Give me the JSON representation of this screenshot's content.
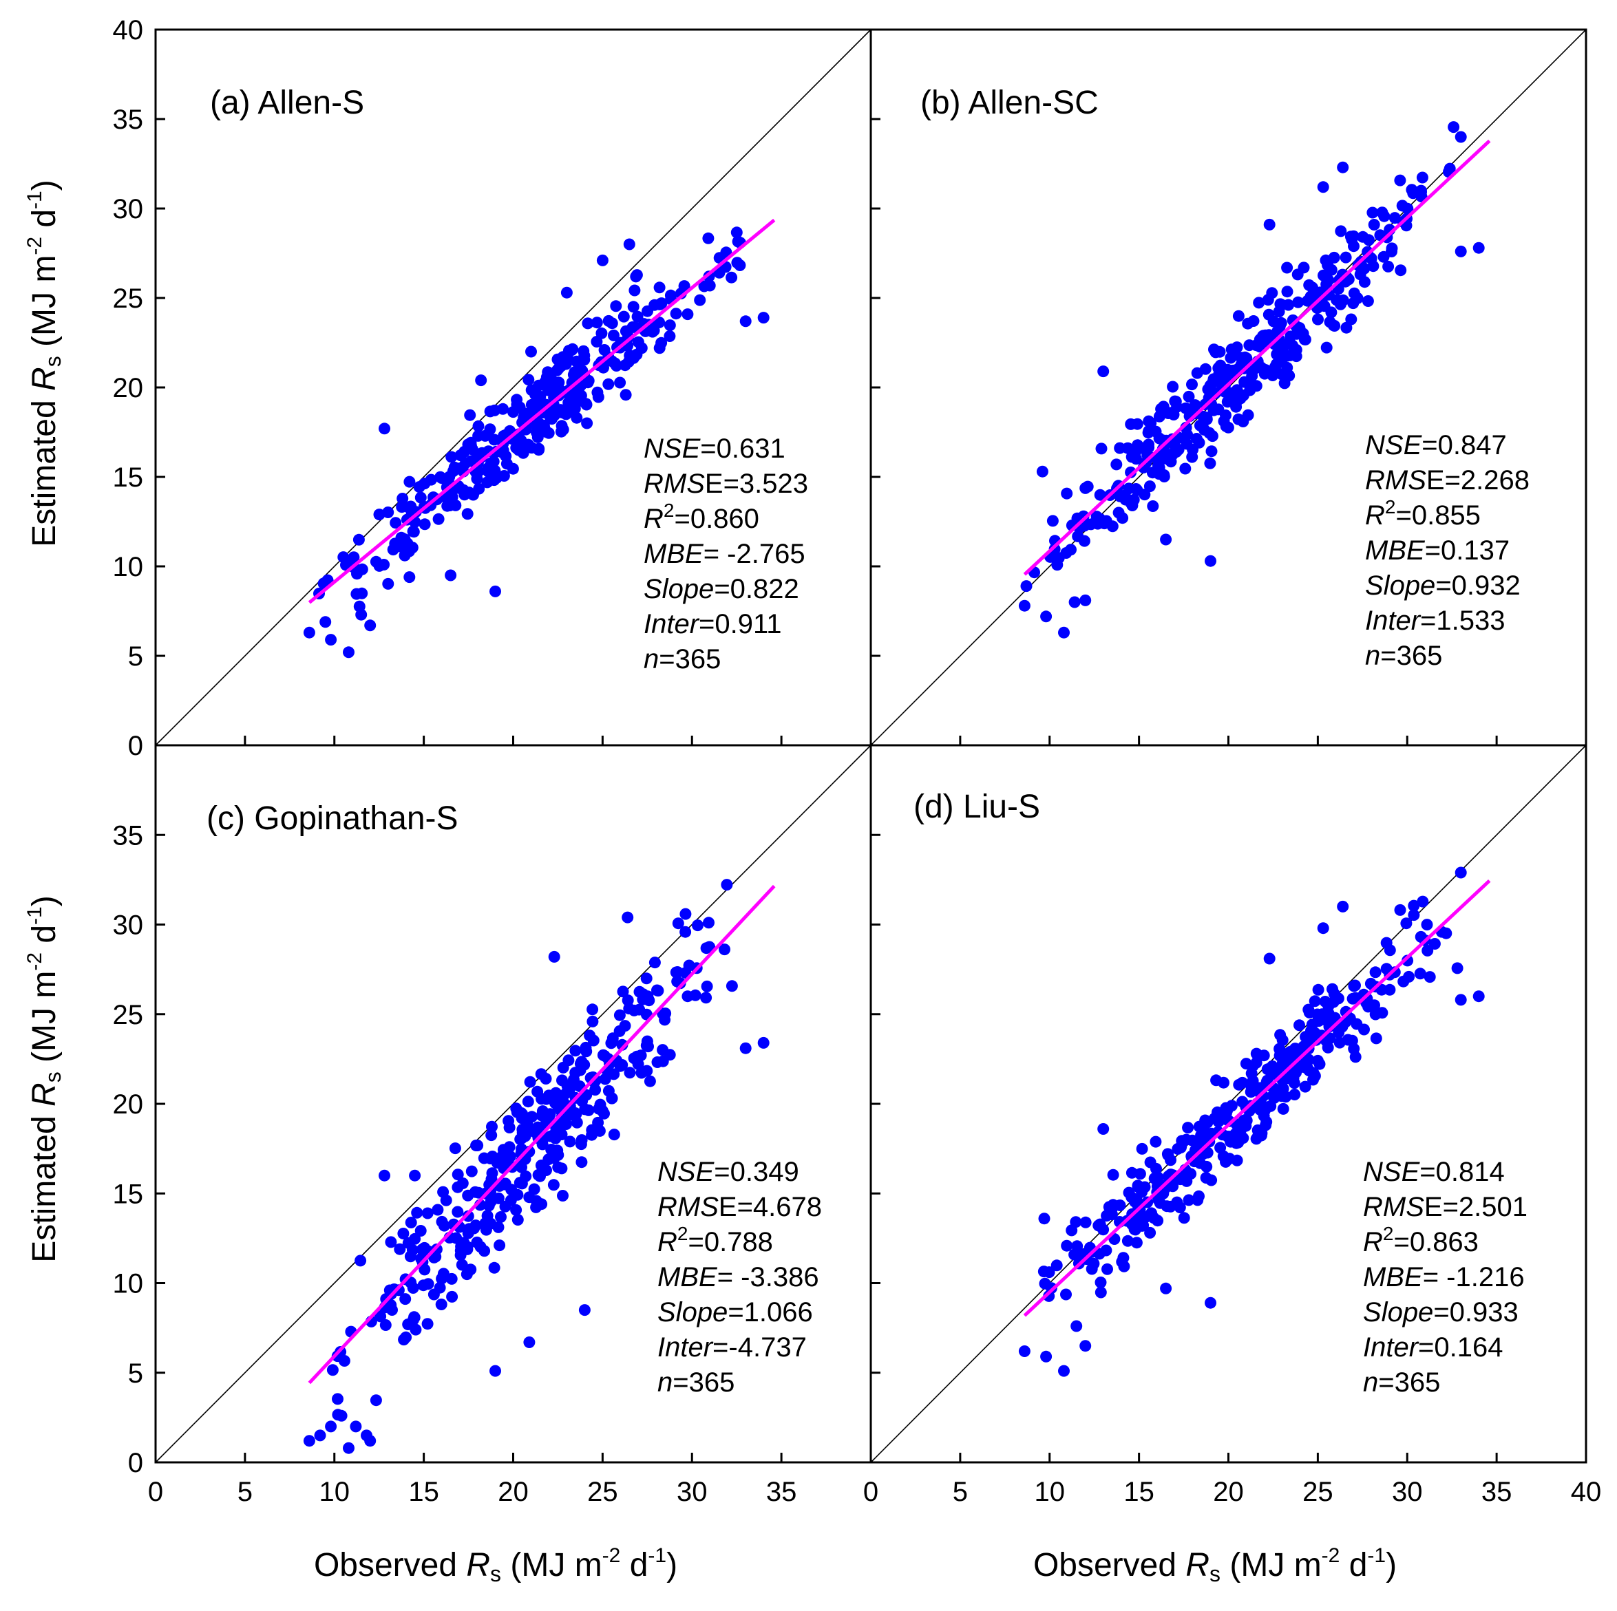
{
  "chart_data": [
    {
      "type": "scatter",
      "panel_label": "(a) Allen-S",
      "xlim": [
        0,
        40
      ],
      "ylim": [
        0,
        40
      ],
      "x_ticks": [
        0,
        5,
        10,
        15,
        20,
        25,
        30,
        35
      ],
      "y_ticks": [
        0,
        5,
        10,
        15,
        20,
        25,
        30,
        35,
        40
      ],
      "ylabel": "Estimated R_s (MJ m^-2 d^-1)",
      "one_to_one_line": true,
      "fit_line": {
        "slope": 0.822,
        "intercept": 0.911,
        "x_range": [
          8.6,
          34.6
        ]
      },
      "stats": [
        {
          "name": "NSE",
          "value": "=0.631"
        },
        {
          "name": "RMSE",
          "value": "=3.523"
        },
        {
          "name": "R2",
          "value": "=0.860"
        },
        {
          "name": "MBE",
          "value": "= -2.765"
        },
        {
          "name": "Slope",
          "value": "=0.822"
        },
        {
          "name": "Inter",
          "value": "=0.911"
        },
        {
          "name": "n",
          "value": "=365"
        }
      ],
      "n": 365,
      "seed": 11,
      "noise_sd": 1.7,
      "outliers": [
        [
          8.6,
          6.3
        ],
        [
          9.8,
          5.9
        ],
        [
          10.8,
          5.2
        ],
        [
          11.5,
          7.3
        ],
        [
          12.0,
          6.7
        ],
        [
          19.0,
          8.6
        ],
        [
          16.5,
          9.5
        ],
        [
          14.2,
          9.4
        ],
        [
          33.0,
          23.7
        ],
        [
          34.0,
          23.9
        ],
        [
          12.8,
          17.7
        ],
        [
          26.5,
          28.0
        ],
        [
          25.0,
          27.1
        ],
        [
          23.0,
          25.3
        ],
        [
          21.0,
          22.0
        ],
        [
          18.2,
          20.4
        ]
      ]
    },
    {
      "type": "scatter",
      "panel_label": "(b) Allen-SC",
      "xlim": [
        0,
        40
      ],
      "ylim": [
        0,
        40
      ],
      "x_ticks": [
        0,
        5,
        10,
        15,
        20,
        25,
        30,
        35
      ],
      "y_ticks": [
        0,
        5,
        10,
        15,
        20,
        25,
        30,
        35,
        40
      ],
      "one_to_one_line": true,
      "fit_line": {
        "slope": 0.932,
        "intercept": 1.533,
        "x_range": [
          8.6,
          34.6
        ]
      },
      "stats": [
        {
          "name": "NSE",
          "value": "=0.847"
        },
        {
          "name": "RMSE",
          "value": "=2.268"
        },
        {
          "name": "R2",
          "value": "=0.855"
        },
        {
          "name": "MBE",
          "value": "=0.137"
        },
        {
          "name": "Slope",
          "value": "=0.932"
        },
        {
          "name": "Inter",
          "value": "=1.533"
        },
        {
          "name": "n",
          "value": "=365"
        }
      ],
      "n": 365,
      "seed": 23,
      "noise_sd": 1.9,
      "outliers": [
        [
          8.6,
          7.8
        ],
        [
          8.7,
          8.9
        ],
        [
          9.8,
          7.2
        ],
        [
          10.8,
          6.3
        ],
        [
          11.4,
          8.0
        ],
        [
          12.0,
          8.1
        ],
        [
          19.0,
          10.3
        ],
        [
          16.5,
          11.5
        ],
        [
          33.0,
          27.6
        ],
        [
          34.0,
          27.8
        ],
        [
          13.0,
          20.9
        ],
        [
          26.4,
          32.3
        ],
        [
          25.3,
          31.2
        ],
        [
          22.3,
          29.1
        ],
        [
          9.6,
          15.3
        ],
        [
          33.0,
          34.0
        ]
      ]
    },
    {
      "type": "scatter",
      "panel_label": "(c) Gopinathan-S",
      "xlim": [
        0,
        40
      ],
      "ylim": [
        0,
        40
      ],
      "x_ticks": [
        0,
        5,
        10,
        15,
        20,
        25,
        30,
        35
      ],
      "y_ticks": [
        0,
        5,
        10,
        15,
        20,
        25,
        30,
        35
      ],
      "xlabel": "Observed R_s (MJ m^-2 d^-1)",
      "ylabel": "Estimated R_s (MJ m^-2 d^-1)",
      "one_to_one_line": true,
      "fit_line": {
        "slope": 1.066,
        "intercept": -4.737,
        "x_range": [
          8.6,
          34.6
        ]
      },
      "stats": [
        {
          "name": "NSE",
          "value": "=0.349"
        },
        {
          "name": "RMSE",
          "value": "=4.678"
        },
        {
          "name": "R2",
          "value": "=0.788"
        },
        {
          "name": "MBE",
          "value": "= -3.386"
        },
        {
          "name": "Slope",
          "value": "=1.066"
        },
        {
          "name": "Inter",
          "value": "=-4.737"
        },
        {
          "name": "n",
          "value": "=365"
        }
      ],
      "n": 365,
      "seed": 37,
      "noise_sd": 2.6,
      "outliers": [
        [
          8.6,
          1.2
        ],
        [
          9.2,
          1.5
        ],
        [
          9.8,
          2.0
        ],
        [
          10.4,
          2.6
        ],
        [
          10.8,
          0.8
        ],
        [
          11.2,
          2.0
        ],
        [
          11.8,
          1.5
        ],
        [
          12.0,
          1.2
        ],
        [
          19.0,
          5.1
        ],
        [
          24.0,
          8.5
        ],
        [
          33.0,
          23.1
        ],
        [
          34.0,
          23.4
        ],
        [
          12.8,
          16.0
        ],
        [
          26.4,
          30.4
        ],
        [
          22.3,
          28.2
        ],
        [
          14.5,
          16.0
        ],
        [
          20.9,
          6.7
        ]
      ]
    },
    {
      "type": "scatter",
      "panel_label": "(d) Liu-S",
      "xlim": [
        0,
        40
      ],
      "ylim": [
        0,
        40
      ],
      "x_ticks": [
        0,
        5,
        10,
        15,
        20,
        25,
        30,
        35,
        40
      ],
      "y_ticks": [
        0,
        5,
        10,
        15,
        20,
        25,
        30,
        35
      ],
      "xlabel": "Observed R_s (MJ m^-2 d^-1)",
      "one_to_one_line": true,
      "fit_line": {
        "slope": 0.933,
        "intercept": 0.164,
        "x_range": [
          8.6,
          34.6
        ]
      },
      "stats": [
        {
          "name": "NSE",
          "value": "=0.814"
        },
        {
          "name": "RMSE",
          "value": "=2.501"
        },
        {
          "name": "R2",
          "value": "=0.863"
        },
        {
          "name": "MBE",
          "value": "= -1.216"
        },
        {
          "name": "Slope",
          "value": "=0.933"
        },
        {
          "name": "Inter",
          "value": "=0.164"
        },
        {
          "name": "n",
          "value": "=365"
        }
      ],
      "n": 365,
      "seed": 51,
      "noise_sd": 1.8,
      "outliers": [
        [
          8.6,
          6.2
        ],
        [
          9.8,
          5.9
        ],
        [
          10.8,
          5.1
        ],
        [
          11.5,
          7.6
        ],
        [
          12.0,
          6.5
        ],
        [
          19.0,
          8.9
        ],
        [
          16.5,
          9.7
        ],
        [
          33.0,
          25.8
        ],
        [
          34.0,
          26.0
        ],
        [
          13.0,
          18.6
        ],
        [
          26.4,
          31.0
        ],
        [
          25.3,
          29.8
        ],
        [
          22.3,
          28.1
        ],
        [
          9.7,
          13.6
        ],
        [
          33.0,
          32.9
        ]
      ]
    }
  ],
  "colors": {
    "points": "#0000ff",
    "fit_line": "#ff00ff",
    "axes": "#000000"
  },
  "axis_text": {
    "est": "Estimated ",
    "obs": "Observed ",
    "R": "R",
    "s": "s",
    "units_open": " (MJ m",
    "m_exp": "-2",
    "d": " d",
    "d_exp": "-1",
    "close": ")"
  }
}
